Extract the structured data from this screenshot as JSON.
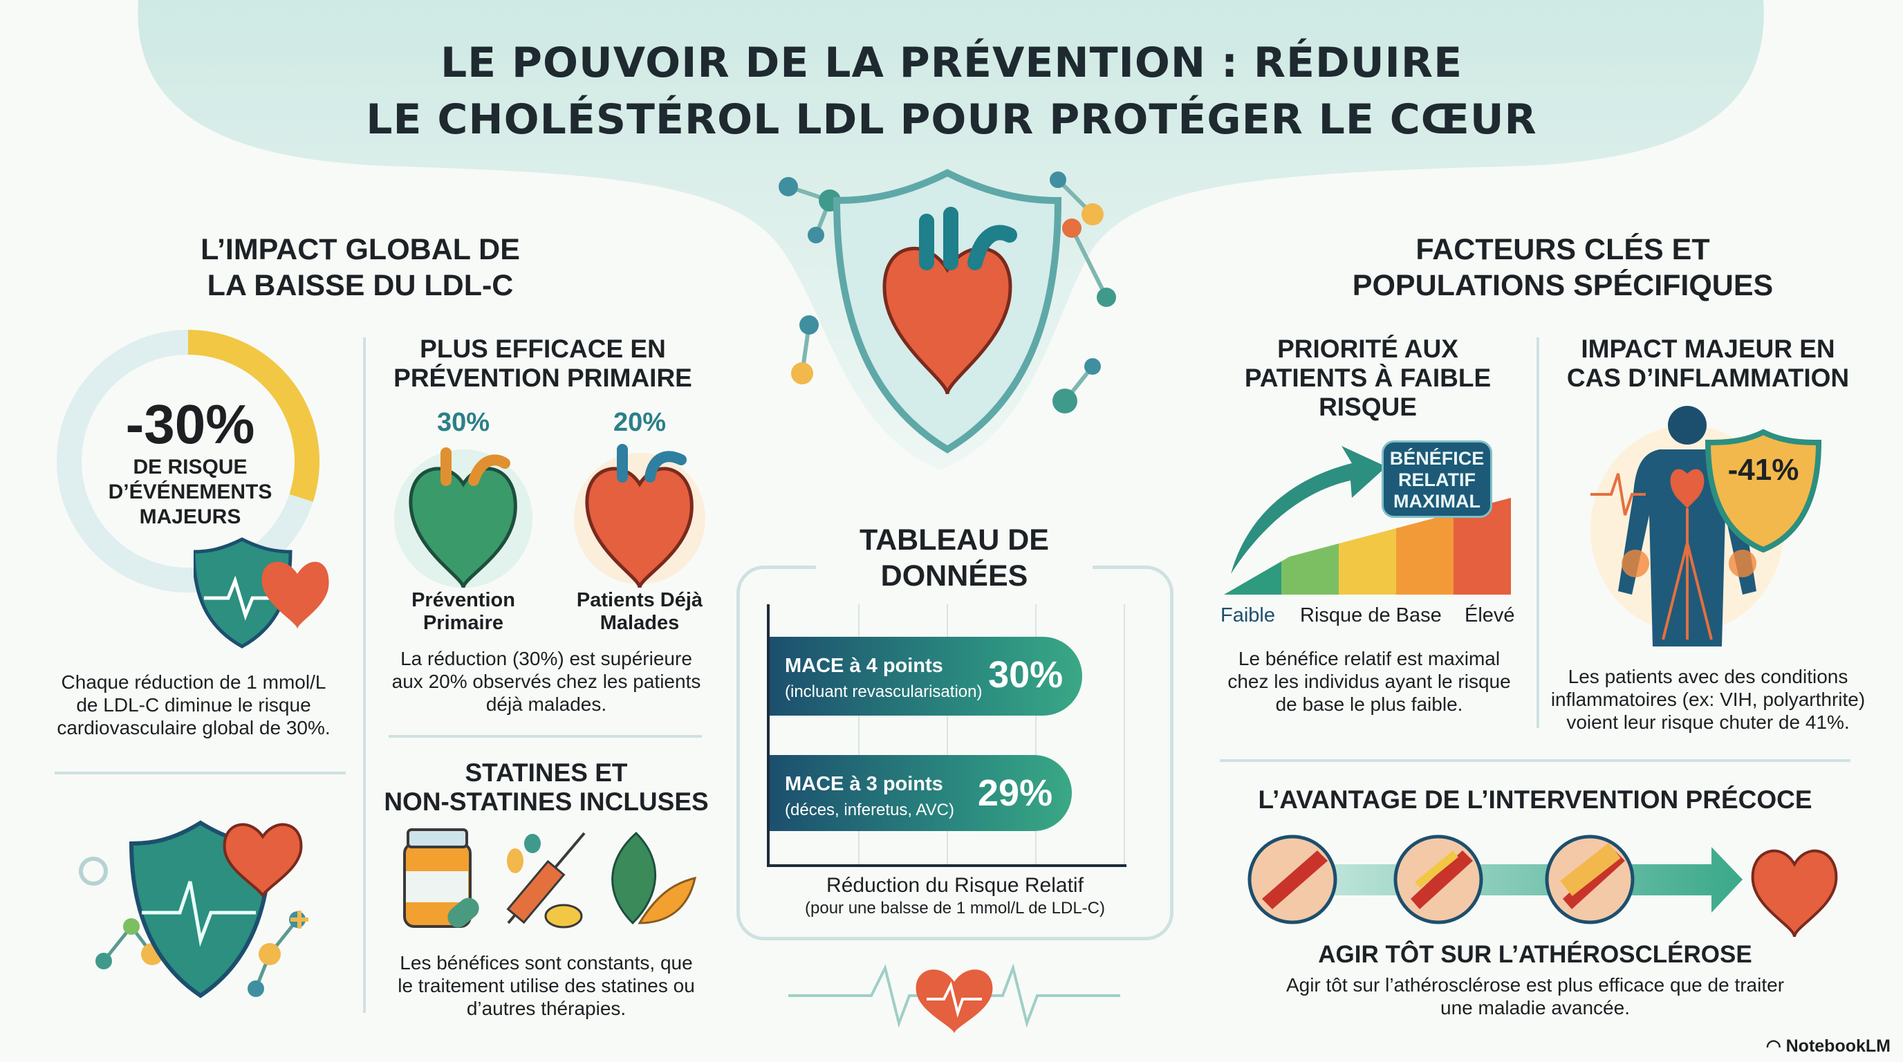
{
  "title": {
    "line1": "LE POUVOIR DE LA PRÉVENTION : RÉDUIRE",
    "line2": "LE CHOLÉSTÉROL LDL POUR PROTÉGER LE CŒUR"
  },
  "left": {
    "heading": [
      "L’IMPACT GLOBAL DE",
      "LA BAISSE DU LDL-C"
    ],
    "donut": {
      "value": "-30%",
      "label": [
        "DE RISQUE",
        "D’ÉVÉNEMENTS",
        "MAJEURS"
      ],
      "fill_percent": 30
    },
    "text": [
      "Chaque réduction de 1 mmol/L",
      "de LDL-C diminue le risque",
      "cardiovasculaire global de 30%."
    ]
  },
  "primary": {
    "heading": [
      "PLUS EFFICACE EN",
      "PRÉVENTION PRIMAIRE"
    ],
    "items": [
      {
        "value": "30%",
        "label": [
          "Prévention",
          "Primaire"
        ]
      },
      {
        "value": "20%",
        "label": [
          "Patients Déjà",
          "Malades"
        ]
      }
    ],
    "text": [
      "La réduction (30%) est supérieure",
      "aux 20% observés chez les patients",
      "déjà malades."
    ]
  },
  "statins": {
    "heading": [
      "STATINES ET",
      "NON-STATINES INCLUSES"
    ],
    "text": [
      "Les bénéfices sont constants, que",
      "le traitement utilise des statines ou",
      "d’autres thérapies."
    ]
  },
  "table": {
    "heading": [
      "TABLEAU DE",
      "DONNÉES"
    ],
    "rows": [
      {
        "label": "MACE à 4 points",
        "sub": "(incluant revascularisation)",
        "value": "30%",
        "pct": 30
      },
      {
        "label": "MACE à 3 points",
        "sub": "(déces, inferetus, AVC)",
        "value": "29%",
        "pct": 29
      }
    ],
    "caption": "Réduction du Risque Relatif",
    "caption_sub": "(pour une balsse de 1 mmol/L de LDL-C)"
  },
  "right": {
    "heading": [
      "FACTEURS CLÉS ET",
      "POPULATIONS SPÉCIFIQUES"
    ]
  },
  "low_risk": {
    "heading": [
      "PRIORITÉ AUX",
      "PATIENTS À FAIBLE",
      "RISQUE"
    ],
    "badge": [
      "BÉNÉFICE",
      "RELATIF",
      "MAXIMAL"
    ],
    "axis": [
      "Faible",
      "Risque de Base",
      "Élevé"
    ],
    "colors": [
      "#2e9a7e",
      "#7cbf63",
      "#f2c744",
      "#f29a38",
      "#e4603e"
    ],
    "text": [
      "Le bénéfice relatif est maximal",
      "chez les individus ayant le risque",
      "de base le plus faible."
    ]
  },
  "inflammation": {
    "heading": [
      "IMPACT MAJEUR EN",
      "CAS D’INFLAMMATION"
    ],
    "badge": "-41%",
    "text": [
      "Les patients avec des conditions",
      "inflammatoires (ex: VIH, polyarthrite)",
      "voient leur risque chuter de 41%."
    ]
  },
  "early": {
    "heading": "L’AVANTAGE DE L’INTERVENTION PRÉCOCE",
    "subheading": "AGIR TÔT SUR L’ATHÉROSCLÉROSE",
    "text": [
      "Agir tôt sur l’athérosclérose est plus efficace que de traiter",
      "une maladie avancée."
    ]
  },
  "brand": "NotebookLM",
  "colors": {
    "teal": "#2c8f80",
    "navy": "#1c4f6e",
    "accent_yellow": "#f2c744",
    "heart_red": "#e4603e"
  }
}
